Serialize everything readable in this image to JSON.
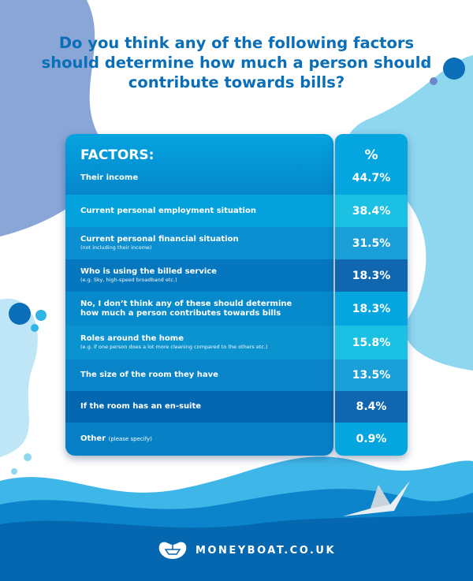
{
  "title": "Do you think any of the following factors should determine how much a person should contribute towards bills?",
  "colors": {
    "title": "#0a6fb8",
    "dark_blue": "#0567b0",
    "mid_blue": "#0594d8",
    "light_blue": "#1cc0e3",
    "bg_blob": "#7fd3ee"
  },
  "chart_data": {
    "type": "table",
    "columns": [
      "FACTORS:",
      "%"
    ],
    "rows": [
      {
        "factor": "Their income",
        "note": "",
        "value": "44.7%",
        "num": 44.7
      },
      {
        "factor": "Current personal employment situation",
        "note": "",
        "value": "38.4%",
        "num": 38.4
      },
      {
        "factor": "Current personal financial situation",
        "note": "(not including their income)",
        "value": "31.5%",
        "num": 31.5
      },
      {
        "factor": "Who is using the billed service",
        "note": "(e.g. Sky, high-speed broadband etc.)",
        "value": "18.3%",
        "num": 18.3
      },
      {
        "factor": "No, I don’t think any of these should determine how much a person contributes towards bills",
        "note": "",
        "value": "18.3%",
        "num": 18.3
      },
      {
        "factor": "Roles around the home",
        "note": "(e.g. if one person does a lot more cleaning compared to the others etc.)",
        "value": "15.8%",
        "num": 15.8
      },
      {
        "factor": "The size of the room they have",
        "note": "",
        "value": "13.5%",
        "num": 13.5
      },
      {
        "factor": "If the room has an en-suite",
        "note": "",
        "value": "8.4%",
        "num": 8.4
      },
      {
        "factor": "Other",
        "inline_note": "(please specify)",
        "value": "0.9%",
        "num": 0.9
      }
    ]
  },
  "footer": {
    "brand": "MONEYBOAT.CO.UK",
    "logo_icon": "boat-icon"
  }
}
